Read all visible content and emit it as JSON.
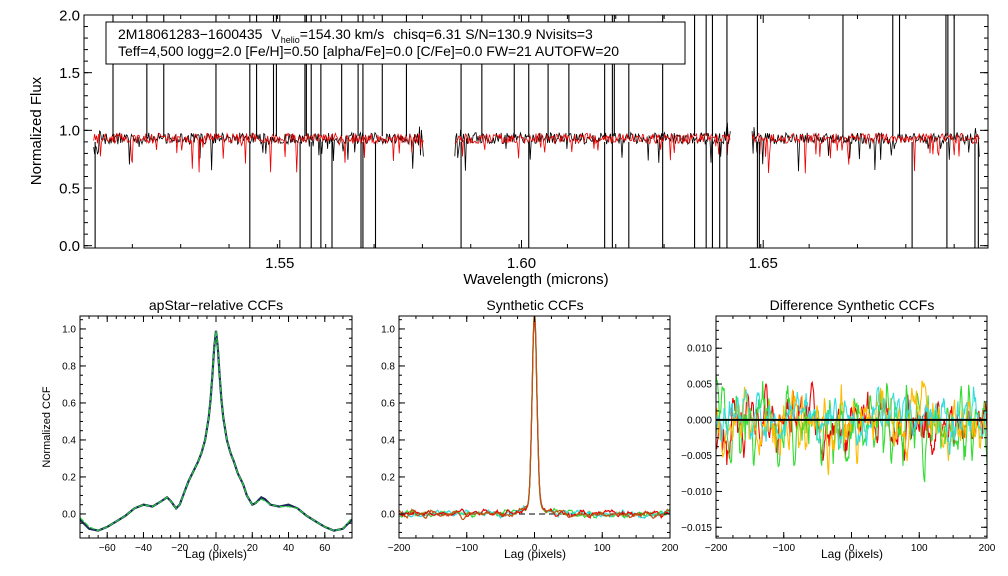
{
  "colors": {
    "observed": "#000000",
    "model": "#ee0000",
    "ccf_dark": "#1a2a5a",
    "ccf_green": "#22cc33",
    "ccf_orange": "#bb5511",
    "diff": [
      "#ee0000",
      "#33dd33",
      "#ffbb00",
      "#33dddd"
    ]
  },
  "chart_data": [
    {
      "type": "line",
      "title": "",
      "annotation": {
        "line1": {
          "id": "2M18061283−1600435",
          "v_label": "V",
          "v_sub": "helio",
          "v_value": "=154.30 km/s",
          "stats": "chisq=6.31  S/N=130.9  Nvisits=3"
        },
        "line2": "Teff=4,500 logg=2.0 [Fe/H]=0.50 [alpha/Fe]=0.0 [C/Fe]=0.0 FW=21 AUTOFW=20"
      },
      "xlabel": "Wavelength (microns)",
      "ylabel": "Normalized Flux",
      "xlim": [
        1.5095,
        1.6965
      ],
      "ylim": [
        -0.02,
        2.0
      ],
      "xticks": [
        {
          "v": 1.55,
          "label": "1.55"
        },
        {
          "v": 1.6,
          "label": "1.60"
        },
        {
          "v": 1.65,
          "label": "1.65"
        }
      ],
      "yticks": [
        {
          "v": 0.0,
          "label": "0.0"
        },
        {
          "v": 0.5,
          "label": "0.5"
        },
        {
          "v": 1.0,
          "label": "1.0"
        },
        {
          "v": 1.5,
          "label": "1.5"
        },
        {
          "v": 2.0,
          "label": "2.0"
        }
      ],
      "chips": [
        [
          1.5115,
          1.5798
        ],
        [
          1.5862,
          1.6432
        ],
        [
          1.6477,
          1.6947
        ]
      ],
      "series": [
        {
          "role": "observed",
          "color": "#000000",
          "continuum": 0.93,
          "noise": 0.05,
          "step": 0.0002
        },
        {
          "role": "model",
          "color": "#ee0000",
          "continuum": 0.93,
          "noise": 0.045,
          "step": 0.0002
        }
      ],
      "spikes_up": [
        1.5155,
        1.5225,
        1.526,
        1.5368,
        1.5438,
        1.5452,
        1.5487,
        1.5493,
        1.5552,
        1.5555,
        1.5565,
        1.5585,
        1.5628,
        1.5662,
        1.5672,
        1.5712,
        1.5762,
        1.5875,
        1.5918,
        1.5985,
        1.6015,
        1.6055,
        1.6098,
        1.6172,
        1.6188,
        1.6192,
        1.6222,
        1.6292,
        1.6358,
        1.6382,
        1.6395,
        1.6425,
        1.6488,
        1.6665,
        1.6768,
        1.6782,
        1.6878,
        1.6882,
        1.6895
      ],
      "spikes_down": [
        1.5118,
        1.5438,
        1.5542,
        1.5565,
        1.5585,
        1.5608,
        1.5668,
        1.5672,
        1.5698,
        1.5875,
        1.6015,
        1.6172,
        1.6188,
        1.6222,
        1.6292,
        1.6358,
        1.6382,
        1.6395,
        1.641,
        1.6425,
        1.6488,
        1.6492,
        1.6808,
        1.688,
        1.6938,
        1.6945
      ]
    },
    {
      "type": "line",
      "title": "apStar−relative CCFs",
      "xlabel": "Lag (pixels)",
      "ylabel": "Normalized CCF",
      "xlim": [
        -75,
        75
      ],
      "ylim": [
        -0.13,
        1.07
      ],
      "xticks": [
        {
          "v": -60,
          "label": "−60"
        },
        {
          "v": -40,
          "label": "−40"
        },
        {
          "v": -20,
          "label": "−20"
        },
        {
          "v": 0,
          "label": "0"
        },
        {
          "v": 20,
          "label": "20"
        },
        {
          "v": 40,
          "label": "40"
        },
        {
          "v": 60,
          "label": "60"
        }
      ],
      "yticks": [
        {
          "v": 0.0,
          "label": "0.0"
        },
        {
          "v": 0.2,
          "label": "0.2"
        },
        {
          "v": 0.4,
          "label": "0.4"
        },
        {
          "v": 0.6,
          "label": "0.6"
        },
        {
          "v": 0.8,
          "label": "0.8"
        },
        {
          "v": 1.0,
          "label": "1.0"
        }
      ],
      "series": [
        {
          "color": "#1a2a5a",
          "x": [
            -75,
            -70,
            -65,
            -60,
            -55,
            -50,
            -45,
            -40,
            -35,
            -30,
            -27,
            -25,
            -22,
            -20,
            -17,
            -15,
            -12,
            -10,
            -8,
            -6,
            -4,
            -3,
            -2,
            -1,
            0,
            1,
            2,
            3,
            4,
            6,
            8,
            10,
            12,
            15,
            17,
            20,
            22,
            25,
            27,
            30,
            35,
            40,
            45,
            50,
            55,
            60,
            65,
            70,
            75
          ],
          "y": [
            -0.03,
            -0.08,
            -0.09,
            -0.07,
            -0.04,
            -0.01,
            0.03,
            0.05,
            0.04,
            0.07,
            0.09,
            0.07,
            0.03,
            0.05,
            0.13,
            0.18,
            0.24,
            0.28,
            0.33,
            0.4,
            0.52,
            0.62,
            0.75,
            0.9,
            0.99,
            0.9,
            0.75,
            0.62,
            0.52,
            0.4,
            0.33,
            0.28,
            0.22,
            0.16,
            0.1,
            0.05,
            0.06,
            0.09,
            0.08,
            0.05,
            0.04,
            0.05,
            0.03,
            -0.01,
            -0.04,
            -0.07,
            -0.09,
            -0.08,
            -0.03
          ]
        },
        {
          "color": "#22cc33",
          "x": [
            -75,
            -70,
            -65,
            -60,
            -55,
            -50,
            -45,
            -40,
            -35,
            -30,
            -27,
            -25,
            -22,
            -20,
            -17,
            -15,
            -12,
            -10,
            -8,
            -6,
            -4,
            -3,
            -2,
            -1,
            0,
            1,
            2,
            3,
            4,
            6,
            8,
            10,
            12,
            15,
            17,
            20,
            22,
            25,
            27,
            30,
            35,
            40,
            45,
            50,
            55,
            60,
            65,
            70,
            75
          ],
          "y": [
            -0.02,
            -0.07,
            -0.09,
            -0.07,
            -0.04,
            -0.01,
            0.03,
            0.05,
            0.04,
            0.07,
            0.09,
            0.07,
            0.03,
            0.05,
            0.13,
            0.18,
            0.24,
            0.28,
            0.33,
            0.4,
            0.52,
            0.62,
            0.75,
            0.9,
            0.99,
            0.9,
            0.75,
            0.62,
            0.52,
            0.4,
            0.33,
            0.28,
            0.22,
            0.16,
            0.1,
            0.05,
            0.06,
            0.08,
            0.07,
            0.05,
            0.04,
            0.04,
            0.03,
            -0.01,
            -0.04,
            -0.07,
            -0.09,
            -0.08,
            -0.02
          ]
        }
      ]
    },
    {
      "type": "line",
      "title": "Synthetic CCFs",
      "xlabel": "Lag (pixels)",
      "ylabel": "",
      "xlim": [
        -200,
        200
      ],
      "ylim": [
        -0.13,
        1.07
      ],
      "xticks": [
        {
          "v": -200,
          "label": "−200"
        },
        {
          "v": -100,
          "label": "−100"
        },
        {
          "v": 0,
          "label": "0"
        },
        {
          "v": 100,
          "label": "100"
        },
        {
          "v": 200,
          "label": "200"
        }
      ],
      "yticks": [
        {
          "v": 0.0,
          "label": "0.0"
        },
        {
          "v": 0.2,
          "label": "0.2"
        },
        {
          "v": 0.4,
          "label": "0.4"
        },
        {
          "v": 0.6,
          "label": "0.6"
        },
        {
          "v": 0.8,
          "label": "0.8"
        },
        {
          "v": 1.0,
          "label": "1.0"
        }
      ],
      "zero_line": 0.0,
      "peak": {
        "x": 0,
        "y": 1.0,
        "width": 3.5
      },
      "series": [
        {
          "color": "#33dd33",
          "noise": 0.025,
          "seed": 11
        },
        {
          "color": "#33dddd",
          "noise": 0.025,
          "seed": 23
        },
        {
          "color": "#ee0000",
          "noise": 0.025,
          "seed": 37
        },
        {
          "color": "#bb5511",
          "noise": 0.025,
          "seed": 41
        }
      ]
    },
    {
      "type": "line",
      "title": "Difference Synthetic CCFs",
      "xlabel": "Lag (pixels)",
      "ylabel": "",
      "xlim": [
        -200,
        200
      ],
      "ylim": [
        -0.0165,
        0.0145
      ],
      "xticks": [
        {
          "v": -200,
          "label": "−200"
        },
        {
          "v": -100,
          "label": "−100"
        },
        {
          "v": 0,
          "label": "0"
        },
        {
          "v": 100,
          "label": "100"
        },
        {
          "v": 200,
          "label": "200"
        }
      ],
      "yticks": [
        {
          "v": 0.01,
          "label": "0.010"
        },
        {
          "v": 0.005,
          "label": "0.005"
        },
        {
          "v": 0.0,
          "label": "0.000"
        },
        {
          "v": -0.005,
          "label": "−0.005"
        },
        {
          "v": -0.01,
          "label": "−0.010"
        },
        {
          "v": -0.015,
          "label": "−0.015"
        }
      ],
      "zero_line": 0.0,
      "series": [
        {
          "color": "#ee0000",
          "amp": 0.0045,
          "seed": 5
        },
        {
          "color": "#33dd33",
          "amp": 0.0062,
          "seed": 9
        },
        {
          "color": "#ffbb00",
          "amp": 0.0055,
          "seed": 14
        },
        {
          "color": "#33dddd",
          "amp": 0.0035,
          "seed": 21
        }
      ]
    }
  ]
}
